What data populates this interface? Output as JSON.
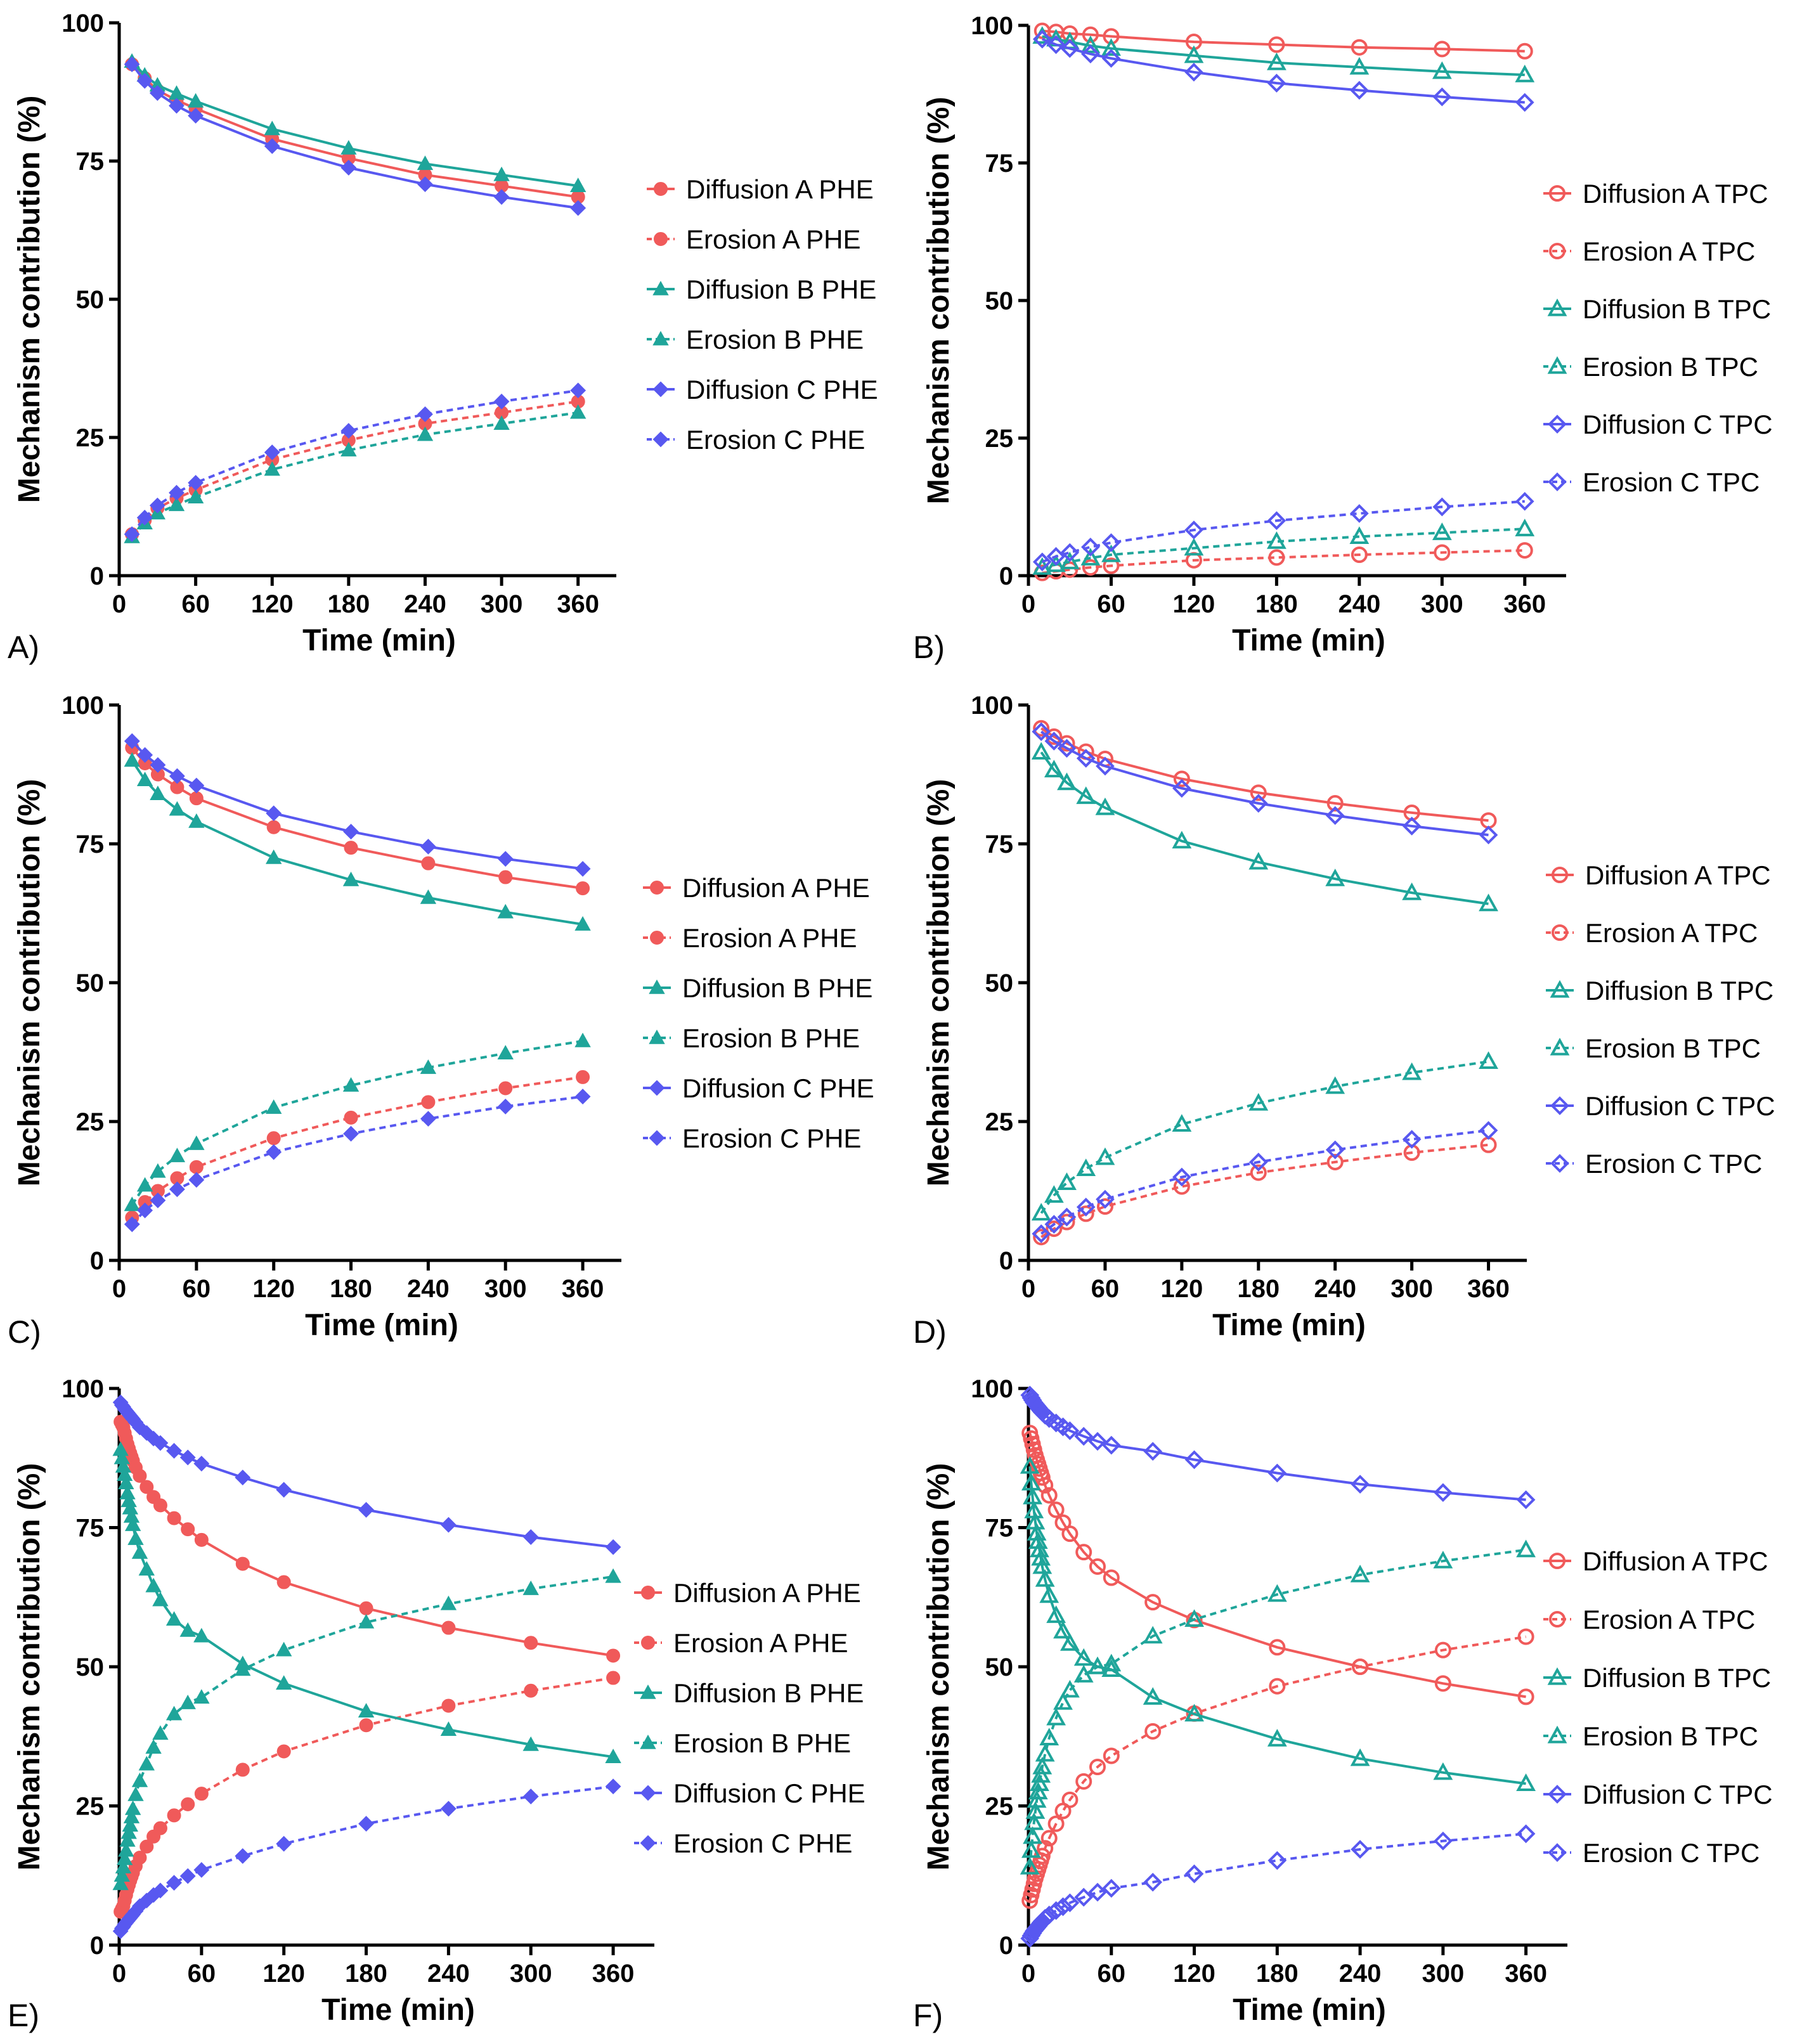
{
  "chart_data": [
    {
      "panel": "A)",
      "type": "line",
      "xlabel": "Time (min)",
      "ylabel": "Mechanism contribution (%)",
      "xlim": [
        0,
        390
      ],
      "ylim": [
        0,
        100
      ],
      "xticks": [
        0,
        60,
        120,
        180,
        240,
        300,
        360
      ],
      "yticks": [
        0,
        25,
        50,
        75,
        100
      ],
      "x": [
        10,
        20,
        30,
        45,
        60,
        120,
        180,
        240,
        300,
        360
      ],
      "marker_style": "filled",
      "series": [
        {
          "name": "Diffusion A PHE",
          "color": "#f05a5a",
          "marker": "circle",
          "dashed": false,
          "values": [
            92.5,
            90,
            87.8,
            86,
            84.5,
            79,
            75.5,
            72.5,
            70.5,
            68.5
          ]
        },
        {
          "name": "Erosion A PHE",
          "color": "#f05a5a",
          "marker": "circle",
          "dashed": true,
          "values": [
            7.5,
            10,
            12.2,
            14,
            15.5,
            21,
            24.5,
            27.5,
            29.5,
            31.5
          ]
        },
        {
          "name": "Diffusion B PHE",
          "color": "#1fa59a",
          "marker": "triangle",
          "dashed": false,
          "values": [
            93,
            90.5,
            88.7,
            87.2,
            85.8,
            80.8,
            77.3,
            74.5,
            72.5,
            70.5
          ]
        },
        {
          "name": "Erosion B PHE",
          "color": "#1fa59a",
          "marker": "triangle",
          "dashed": true,
          "values": [
            7,
            9.5,
            11.3,
            12.8,
            14.2,
            19.2,
            22.7,
            25.5,
            27.5,
            29.5
          ]
        },
        {
          "name": "Diffusion C PHE",
          "color": "#5858f0",
          "marker": "diamond",
          "dashed": false,
          "values": [
            92.5,
            89.5,
            87.3,
            85,
            83.2,
            77.7,
            73.8,
            70.8,
            68.5,
            66.5
          ]
        },
        {
          "name": "Erosion C PHE",
          "color": "#5858f0",
          "marker": "diamond",
          "dashed": true,
          "values": [
            7.5,
            10.5,
            12.7,
            15,
            16.8,
            22.3,
            26.2,
            29.2,
            31.5,
            33.5
          ]
        }
      ]
    },
    {
      "panel": "B)",
      "type": "line",
      "xlabel": "Time (min)",
      "ylabel": "Mechanism contribution (%)",
      "xlim": [
        0,
        390
      ],
      "ylim": [
        0,
        100
      ],
      "xticks": [
        0,
        60,
        120,
        180,
        240,
        300,
        360
      ],
      "yticks": [
        0,
        25,
        50,
        75,
        100
      ],
      "x": [
        10,
        20,
        30,
        45,
        60,
        120,
        180,
        240,
        300,
        360
      ],
      "marker_style": "open",
      "series": [
        {
          "name": "Diffusion A TPC",
          "color": "#f05a5a",
          "marker": "circle",
          "dashed": false,
          "values": [
            99,
            98.8,
            98.5,
            98.3,
            98,
            97,
            96.5,
            96,
            95.7,
            95.3
          ]
        },
        {
          "name": "Erosion A TPC",
          "color": "#f05a5a",
          "marker": "circle",
          "dashed": true,
          "values": [
            0.5,
            0.8,
            1.1,
            1.5,
            1.8,
            2.8,
            3.3,
            3.8,
            4.2,
            4.6
          ]
        },
        {
          "name": "Diffusion B TPC",
          "color": "#1fa59a",
          "marker": "triangle",
          "dashed": false,
          "values": [
            98,
            97.5,
            97,
            96.3,
            95.8,
            94.5,
            93.2,
            92.4,
            91.6,
            91
          ]
        },
        {
          "name": "Erosion B TPC",
          "color": "#1fa59a",
          "marker": "triangle",
          "dashed": true,
          "values": [
            1.5,
            2,
            2.5,
            3.2,
            3.8,
            5,
            6.2,
            7.1,
            7.8,
            8.5
          ]
        },
        {
          "name": "Diffusion C TPC",
          "color": "#5858f0",
          "marker": "diamond",
          "dashed": false,
          "values": [
            97.5,
            96.5,
            95.8,
            94.8,
            94,
            91.5,
            89.5,
            88.2,
            87,
            86
          ]
        },
        {
          "name": "Erosion C TPC",
          "color": "#5858f0",
          "marker": "diamond",
          "dashed": true,
          "values": [
            2.5,
            3.5,
            4.2,
            5.2,
            6,
            8.3,
            10,
            11.3,
            12.5,
            13.5
          ]
        }
      ]
    },
    {
      "panel": "C)",
      "type": "line",
      "xlabel": "Time (min)",
      "ylabel": "Mechanism contribution (%)",
      "xlim": [
        0,
        390
      ],
      "ylim": [
        0,
        100
      ],
      "xticks": [
        0,
        60,
        120,
        180,
        240,
        300,
        360
      ],
      "yticks": [
        0,
        25,
        50,
        75,
        100
      ],
      "x": [
        10,
        20,
        30,
        45,
        60,
        120,
        180,
        240,
        300,
        360
      ],
      "marker_style": "filled",
      "series": [
        {
          "name": "Diffusion A PHE",
          "color": "#f05a5a",
          "marker": "circle",
          "dashed": false,
          "values": [
            92.3,
            89.5,
            87.5,
            85.2,
            83.2,
            78,
            74.3,
            71.5,
            69,
            67
          ]
        },
        {
          "name": "Erosion A PHE",
          "color": "#f05a5a",
          "marker": "circle",
          "dashed": true,
          "values": [
            7.7,
            10.5,
            12.5,
            14.8,
            16.8,
            22,
            25.7,
            28.5,
            31,
            33
          ]
        },
        {
          "name": "Diffusion B PHE",
          "color": "#1fa59a",
          "marker": "triangle",
          "dashed": false,
          "values": [
            90,
            86.5,
            84,
            81.2,
            79,
            72.5,
            68.5,
            65.3,
            62.7,
            60.5
          ]
        },
        {
          "name": "Erosion B PHE",
          "color": "#1fa59a",
          "marker": "triangle",
          "dashed": true,
          "values": [
            10,
            13.5,
            16,
            18.8,
            21,
            27.5,
            31.5,
            34.7,
            37.3,
            39.5
          ]
        },
        {
          "name": "Diffusion C PHE",
          "color": "#5858f0",
          "marker": "diamond",
          "dashed": false,
          "values": [
            93.5,
            91,
            89.2,
            87.2,
            85.5,
            80.5,
            77.2,
            74.5,
            72.3,
            70.5
          ]
        },
        {
          "name": "Erosion C PHE",
          "color": "#5858f0",
          "marker": "diamond",
          "dashed": true,
          "values": [
            6.5,
            9,
            10.8,
            12.8,
            14.5,
            19.5,
            22.8,
            25.5,
            27.7,
            29.5
          ]
        }
      ]
    },
    {
      "panel": "D)",
      "type": "line",
      "xlabel": "Time (min)",
      "ylabel": "Mechanism contribution (%)",
      "xlim": [
        0,
        390
      ],
      "ylim": [
        0,
        100
      ],
      "xticks": [
        0,
        60,
        120,
        180,
        240,
        300,
        360
      ],
      "yticks": [
        0,
        25,
        50,
        75,
        100
      ],
      "x": [
        10,
        20,
        30,
        45,
        60,
        120,
        180,
        240,
        300,
        360
      ],
      "marker_style": "open",
      "series": [
        {
          "name": "Diffusion A TPC",
          "color": "#f05a5a",
          "marker": "circle",
          "dashed": false,
          "values": [
            95.8,
            94.3,
            93.1,
            91.6,
            90.3,
            86.7,
            84.2,
            82.3,
            80.6,
            79.2
          ]
        },
        {
          "name": "Erosion A TPC",
          "color": "#f05a5a",
          "marker": "circle",
          "dashed": true,
          "values": [
            4.2,
            5.7,
            6.9,
            8.4,
            9.7,
            13.3,
            15.8,
            17.7,
            19.4,
            20.8
          ]
        },
        {
          "name": "Diffusion B TPC",
          "color": "#1fa59a",
          "marker": "triangle",
          "dashed": false,
          "values": [
            91.5,
            88.3,
            86,
            83.5,
            81.5,
            75.5,
            71.7,
            68.7,
            66.2,
            64.2
          ]
        },
        {
          "name": "Erosion B TPC",
          "color": "#1fa59a",
          "marker": "triangle",
          "dashed": true,
          "values": [
            8.5,
            11.7,
            14,
            16.5,
            18.5,
            24.5,
            28.3,
            31.3,
            33.8,
            35.8
          ]
        },
        {
          "name": "Diffusion C TPC",
          "color": "#5858f0",
          "marker": "diamond",
          "dashed": false,
          "values": [
            95.2,
            93.5,
            92.2,
            90.4,
            89,
            85,
            82.3,
            80.1,
            78.2,
            76.6
          ]
        },
        {
          "name": "Erosion C TPC",
          "color": "#5858f0",
          "marker": "diamond",
          "dashed": true,
          "values": [
            4.8,
            6.5,
            7.8,
            9.6,
            11,
            15,
            17.7,
            19.9,
            21.8,
            23.4
          ]
        }
      ]
    },
    {
      "panel": "E)",
      "type": "line",
      "xlabel": "Time (min)",
      "ylabel": "Mechanism contribution (%)",
      "xlim": [
        0,
        390
      ],
      "ylim": [
        0,
        100
      ],
      "xticks": [
        0,
        60,
        120,
        180,
        240,
        300,
        360
      ],
      "yticks": [
        0,
        25,
        50,
        75,
        100
      ],
      "x": [
        1,
        2,
        3,
        4,
        5,
        6,
        7,
        8,
        9,
        10,
        12,
        15,
        20,
        25,
        30,
        40,
        50,
        60,
        90,
        120,
        180,
        240,
        300,
        360
      ],
      "marker_style": "filled",
      "series": [
        {
          "name": "Diffusion A PHE",
          "color": "#f05a5a",
          "marker": "circle",
          "dashed": false,
          "values": [
            94,
            93.5,
            93,
            92,
            91,
            90,
            89.2,
            88.4,
            87.7,
            87,
            85.8,
            84.3,
            82.3,
            80.5,
            79,
            76.7,
            74.7,
            72.8,
            68.5,
            65.2,
            60.5,
            57,
            54.3,
            52
          ]
        },
        {
          "name": "Erosion A PHE",
          "color": "#f05a5a",
          "marker": "circle",
          "dashed": true,
          "values": [
            6,
            6.5,
            7,
            8,
            9,
            10,
            10.8,
            11.6,
            12.3,
            13,
            14.2,
            15.7,
            17.7,
            19.5,
            21,
            23.3,
            25.3,
            27.2,
            31.5,
            34.8,
            39.5,
            43,
            45.7,
            48
          ]
        },
        {
          "name": "Diffusion B PHE",
          "color": "#1fa59a",
          "marker": "triangle",
          "dashed": false,
          "values": [
            89,
            87.5,
            86,
            84.5,
            83,
            81.2,
            79.8,
            78.5,
            77,
            75.5,
            73,
            70.5,
            67.5,
            64.5,
            62,
            58.5,
            56.5,
            55.5,
            50.5,
            47,
            42,
            38.7,
            36,
            33.8
          ]
        },
        {
          "name": "Erosion B PHE",
          "color": "#1fa59a",
          "marker": "triangle",
          "dashed": true,
          "values": [
            11,
            12.5,
            14,
            15.5,
            17,
            18.8,
            20.2,
            21.5,
            23,
            24.5,
            27,
            29.5,
            32.5,
            35.5,
            38,
            41.5,
            43.5,
            44.5,
            49.5,
            53,
            58,
            61.3,
            64,
            66.2
          ]
        },
        {
          "name": "Diffusion C PHE",
          "color": "#5858f0",
          "marker": "diamond",
          "dashed": false,
          "values": [
            97.5,
            97,
            96.7,
            96.3,
            96,
            95.7,
            95.4,
            95.1,
            94.8,
            94.5,
            93.9,
            93,
            92,
            91,
            90.2,
            88.8,
            87.6,
            86.5,
            84,
            81.8,
            78.2,
            75.5,
            73.3,
            71.5
          ]
        },
        {
          "name": "Erosion C PHE",
          "color": "#5858f0",
          "marker": "diamond",
          "dashed": true,
          "values": [
            2.5,
            3,
            3.3,
            3.7,
            4,
            4.3,
            4.6,
            4.9,
            5.2,
            5.5,
            6.1,
            7,
            8,
            9,
            9.8,
            11.2,
            12.4,
            13.5,
            16,
            18.2,
            21.8,
            24.5,
            26.7,
            28.5
          ]
        }
      ]
    },
    {
      "panel": "F)",
      "type": "line",
      "xlabel": "Time (min)",
      "ylabel": "Mechanism contribution (%)",
      "xlim": [
        0,
        390
      ],
      "ylim": [
        0,
        100
      ],
      "xticks": [
        0,
        60,
        120,
        180,
        240,
        300,
        360
      ],
      "yticks": [
        0,
        25,
        50,
        75,
        100
      ],
      "x": [
        1,
        2,
        3,
        4,
        5,
        6,
        7,
        8,
        9,
        10,
        12,
        15,
        20,
        25,
        30,
        40,
        50,
        60,
        90,
        120,
        180,
        240,
        300,
        360
      ],
      "marker_style": "open",
      "series": [
        {
          "name": "Diffusion A TPC",
          "color": "#f05a5a",
          "marker": "circle",
          "dashed": false,
          "values": [
            92,
            91,
            90,
            89,
            88,
            87.2,
            86.4,
            85.6,
            84.8,
            84,
            82.6,
            80.8,
            78.2,
            75.9,
            73.9,
            70.6,
            68,
            66,
            61.6,
            58.4,
            53.5,
            50,
            47,
            44.6
          ]
        },
        {
          "name": "Erosion A TPC",
          "color": "#f05a5a",
          "marker": "circle",
          "dashed": true,
          "values": [
            8,
            9,
            10,
            11,
            12,
            12.8,
            13.6,
            14.4,
            15.2,
            16,
            17.4,
            19.2,
            21.8,
            24.1,
            26.1,
            29.4,
            32,
            34,
            38.4,
            41.6,
            46.5,
            50,
            53,
            55.4
          ]
        },
        {
          "name": "Diffusion B TPC",
          "color": "#1fa59a",
          "marker": "triangle",
          "dashed": false,
          "values": [
            86,
            83,
            80.5,
            78,
            76,
            74,
            72.5,
            71,
            69.5,
            68,
            65.7,
            62.8,
            59.2,
            56.4,
            54.2,
            51.5,
            50,
            49.5,
            44.5,
            41.5,
            37,
            33.5,
            31,
            29
          ]
        },
        {
          "name": "Erosion B TPC",
          "color": "#1fa59a",
          "marker": "triangle",
          "dashed": true,
          "values": [
            14,
            17,
            19.5,
            22,
            24,
            26,
            27.5,
            29,
            30.5,
            32,
            34.3,
            37.2,
            40.8,
            43.6,
            45.8,
            48.5,
            50,
            50.5,
            55.5,
            58.5,
            63,
            66.5,
            69,
            71
          ]
        },
        {
          "name": "Diffusion C TPC",
          "color": "#5858f0",
          "marker": "diamond",
          "dashed": false,
          "values": [
            98.8,
            98.3,
            97.9,
            97.5,
            97.2,
            96.9,
            96.6,
            96.3,
            96,
            95.7,
            95.2,
            94.6,
            93.8,
            93.1,
            92.4,
            91.4,
            90.5,
            89.8,
            88.7,
            87.2,
            84.8,
            82.8,
            81.3,
            80
          ]
        },
        {
          "name": "Erosion C TPC",
          "color": "#5858f0",
          "marker": "diamond",
          "dashed": true,
          "values": [
            1.2,
            1.7,
            2.1,
            2.5,
            2.8,
            3.1,
            3.4,
            3.7,
            4,
            4.3,
            4.8,
            5.4,
            6.2,
            6.9,
            7.6,
            8.6,
            9.5,
            10.2,
            11.3,
            12.8,
            15.2,
            17.2,
            18.7,
            20
          ]
        }
      ]
    }
  ]
}
